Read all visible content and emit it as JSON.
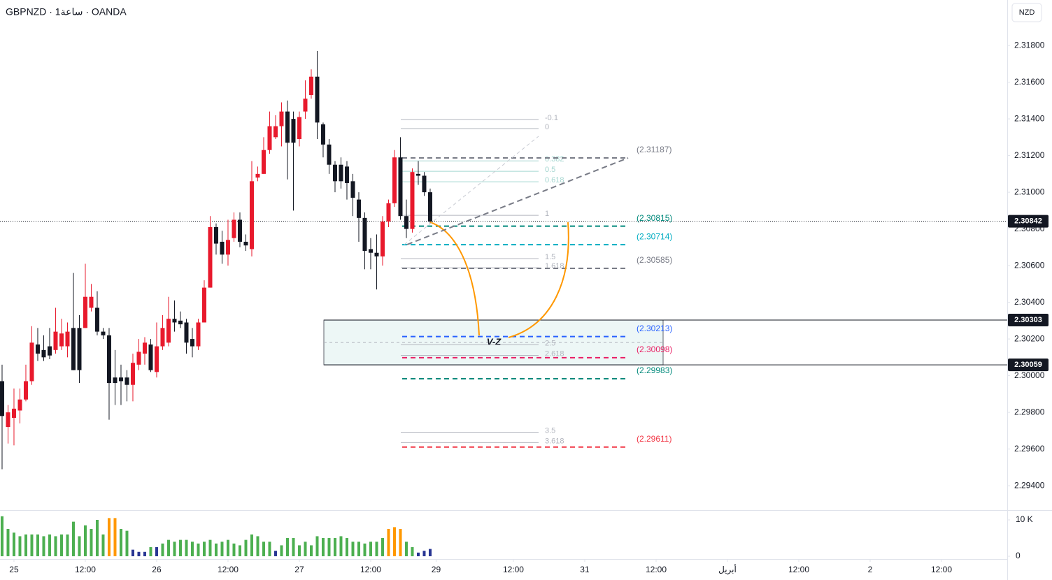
{
  "chart_data": {
    "type": "candlestick",
    "title": "GBPNZD · 1ساعة · OANDA",
    "currency": "NZD",
    "x": [
      -2,
      -1,
      0,
      1,
      2,
      3,
      4,
      5,
      6,
      7,
      8,
      9,
      10,
      11,
      12,
      13,
      14,
      15,
      16,
      17,
      18,
      19,
      20,
      21,
      22,
      23,
      24,
      25,
      26,
      27,
      28,
      29,
      30,
      31,
      32,
      33,
      34,
      35,
      36,
      37,
      38,
      39,
      40,
      41,
      42,
      43,
      44,
      45,
      46,
      47,
      48,
      49,
      50,
      51,
      52,
      53,
      54,
      55,
      56,
      57,
      58,
      59,
      60,
      61,
      62,
      63,
      64,
      65,
      66,
      67,
      68,
      69,
      70
    ],
    "open": [
      2.2997,
      2.2972,
      2.2977,
      2.2981,
      2.2987,
      2.2997,
      2.3017,
      2.3014,
      2.3016,
      2.3014,
      2.3016,
      2.3016,
      2.3026,
      2.3026,
      2.3026,
      2.3037,
      2.3037,
      2.3024,
      2.3022,
      2.2999,
      2.2999,
      2.2999,
      2.2995,
      2.3006,
      2.3012,
      2.3017,
      2.3002,
      2.3016,
      2.3018,
      2.3031,
      2.303,
      2.3029,
      2.302,
      2.3016,
      2.3029,
      2.3048,
      2.3081,
      2.3073,
      2.3066,
      2.3075,
      2.3085,
      2.3073,
      2.3069,
      2.3108,
      2.311,
      2.3123,
      2.313,
      2.3136,
      2.3144,
      2.314,
      2.3129,
      2.3144,
      2.3153,
      2.3163,
      2.3137,
      2.3126,
      2.3115,
      2.3115,
      2.3114,
      2.3106,
      2.3096,
      2.3086,
      2.3069,
      2.3067,
      2.3065,
      2.3084,
      2.3094,
      2.3119,
      2.3087,
      2.308,
      2.311,
      2.3109,
      2.31
    ],
    "high": [
      2.3006,
      2.2984,
      2.2993,
      2.2993,
      2.3006,
      2.3027,
      2.3026,
      2.3022,
      2.3026,
      2.3037,
      2.3031,
      2.3029,
      2.3056,
      2.3033,
      2.3061,
      2.305,
      2.3046,
      2.3026,
      2.3026,
      2.3014,
      2.3006,
      2.3003,
      2.3012,
      2.302,
      2.3021,
      2.302,
      2.3029,
      2.3033,
      2.3043,
      2.3041,
      2.3035,
      2.3031,
      2.3026,
      2.3031,
      2.3052,
      2.3087,
      2.3083,
      2.3079,
      2.3085,
      2.3089,
      2.3089,
      2.3077,
      2.3117,
      2.3114,
      2.313,
      2.3144,
      2.3142,
      2.3149,
      2.315,
      2.3144,
      2.3144,
      2.3161,
      2.3167,
      2.3177,
      2.3138,
      2.3129,
      2.3117,
      2.3119,
      2.3117,
      2.311,
      2.31,
      2.3089,
      2.3075,
      2.3077,
      2.3087,
      2.3096,
      2.3123,
      2.313,
      2.3096,
      2.3113,
      2.3117,
      2.3111,
      2.3102
    ],
    "low": [
      2.2949,
      2.2963,
      2.2962,
      2.2974,
      2.2986,
      2.2995,
      2.3008,
      2.3008,
      2.3009,
      2.3012,
      2.3014,
      2.301,
      2.3003,
      2.2996,
      2.3026,
      2.3035,
      2.3022,
      2.302,
      2.2976,
      2.2984,
      2.2984,
      2.2986,
      2.2986,
      2.3003,
      2.3006,
      2.3002,
      2.2999,
      2.3014,
      2.3016,
      2.3024,
      2.3026,
      2.3012,
      2.301,
      2.3014,
      2.3029,
      2.3048,
      2.3066,
      2.3061,
      2.306,
      2.3073,
      2.307,
      2.3068,
      2.3065,
      2.3106,
      2.311,
      2.3121,
      2.3129,
      2.3125,
      2.3107,
      2.309,
      2.3125,
      2.314,
      2.3151,
      2.3129,
      2.3119,
      2.311,
      2.31,
      2.3102,
      2.3096,
      2.3087,
      2.3073,
      2.3058,
      2.3058,
      2.3047,
      2.306,
      2.3081,
      2.3092,
      2.3085,
      2.3075,
      2.3078,
      2.3104,
      2.3098,
      2.3083
    ],
    "close": [
      2.2978,
      2.298,
      2.2982,
      2.2987,
      2.2997,
      2.3018,
      2.3012,
      2.301,
      2.3011,
      2.3024,
      2.3023,
      2.3024,
      2.3003,
      2.3003,
      2.3043,
      2.3043,
      2.3024,
      2.3022,
      2.2996,
      2.2996,
      2.2997,
      2.2995,
      2.3007,
      2.3013,
      2.3018,
      2.3003,
      2.3016,
      2.3026,
      2.3031,
      2.3029,
      2.3028,
      2.3018,
      2.3016,
      2.3029,
      2.3048,
      2.3081,
      2.3072,
      2.3066,
      2.3074,
      2.3085,
      2.3073,
      2.3071,
      2.3106,
      2.311,
      2.3123,
      2.3136,
      2.3136,
      2.3144,
      2.3127,
      2.3127,
      2.3141,
      2.3151,
      2.3163,
      2.3138,
      2.3126,
      2.3115,
      2.3106,
      2.3106,
      2.3105,
      2.3097,
      2.3086,
      2.3068,
      2.3067,
      2.3065,
      2.3084,
      2.3094,
      2.3119,
      2.3087,
      2.308,
      2.3111,
      2.3109,
      2.31,
      2.3084
    ],
    "up_color": "#e8192c",
    "down_color": "#131722",
    "xlim": [
      -2.35,
      167.06
    ],
    "ylim": [
      2.29267,
      2.32048
    ],
    "xticks": [
      {
        "value": 0,
        "label": "25"
      },
      {
        "value": 12,
        "label": "12:00"
      },
      {
        "value": 24,
        "label": "26"
      },
      {
        "value": 36,
        "label": "12:00"
      },
      {
        "value": 48,
        "label": "27"
      },
      {
        "value": 60,
        "label": "12:00"
      },
      {
        "value": 71,
        "label": "29"
      },
      {
        "value": 84,
        "label": "12:00"
      },
      {
        "value": 96,
        "label": "31"
      },
      {
        "value": 108,
        "label": "12:00"
      },
      {
        "value": 120,
        "label": "أبريل"
      },
      {
        "value": 132,
        "label": "12:00"
      },
      {
        "value": 144,
        "label": "2"
      },
      {
        "value": 156,
        "label": "12:00"
      }
    ],
    "yticks": [
      {
        "value": 2.318,
        "label": "2.31800"
      },
      {
        "value": 2.316,
        "label": "2.31600"
      },
      {
        "value": 2.314,
        "label": "2.31400"
      },
      {
        "value": 2.312,
        "label": "2.31200"
      },
      {
        "value": 2.31,
        "label": "2.31000"
      },
      {
        "value": 2.308,
        "label": "2.30800"
      },
      {
        "value": 2.306,
        "label": "2.30600"
      },
      {
        "value": 2.304,
        "label": "2.30400"
      },
      {
        "value": 2.302,
        "label": "2.30200"
      },
      {
        "value": 2.3,
        "label": "2.30000"
      },
      {
        "value": 2.298,
        "label": "2.29800"
      },
      {
        "value": 2.296,
        "label": "2.29600"
      },
      {
        "value": 2.294,
        "label": "2.29400"
      }
    ],
    "current_price": 2.30842,
    "zone_levels": [
      2.30303,
      2.30059
    ],
    "zone_label": "V-Z",
    "price_levels": [
      {
        "value": 2.31187,
        "label": "(2.31187)",
        "color": "#787b86"
      },
      {
        "value": 2.30815,
        "label": "(2.30815)",
        "color": "#00897b"
      },
      {
        "value": 2.30714,
        "label": "(2.30714)",
        "color": "#00acc1"
      },
      {
        "value": 2.30585,
        "label": "(2.30585)",
        "color": "#787b86"
      },
      {
        "value": 2.30213,
        "label": "(2.30213)",
        "color": "#2962ff"
      },
      {
        "value": 2.30098,
        "label": "(2.30098)",
        "color": "#e91e63"
      },
      {
        "value": 2.29983,
        "label": "(2.29983)",
        "color": "#00897b"
      },
      {
        "value": 2.29611,
        "label": "(2.29611)",
        "color": "#f23645"
      }
    ],
    "fib_levels": [
      {
        "ratio": -0.1,
        "price": 2.31396,
        "color": "#b2b5be"
      },
      {
        "ratio": 0,
        "price": 2.31347,
        "color": "#b2b5be"
      },
      {
        "ratio": 0.382,
        "price": 2.31171,
        "color": "#a5d6d0"
      },
      {
        "ratio": 0.5,
        "price": 2.31114,
        "color": "#a5d6d0"
      },
      {
        "ratio": 0.618,
        "price": 2.31057,
        "color": "#a5d6d0"
      },
      {
        "ratio": 1,
        "price": 2.30874,
        "color": "#b2b5be"
      },
      {
        "ratio": 1.5,
        "price": 2.30638,
        "color": "#b2b5be"
      },
      {
        "ratio": 1.618,
        "price": 2.30588,
        "color": "#b2b5be"
      },
      {
        "ratio": 2.5,
        "price": 2.30168,
        "color": "#b2b5be"
      },
      {
        "ratio": 2.618,
        "price": 2.30111,
        "color": "#b2b5be"
      },
      {
        "ratio": 3.5,
        "price": 2.29692,
        "color": "#b2b5be"
      },
      {
        "ratio": 3.618,
        "price": 2.29635,
        "color": "#b2b5be"
      }
    ],
    "volume": {
      "values": [
        11,
        7.5,
        6.5,
        5.5,
        6,
        6,
        6,
        5.5,
        6,
        5.5,
        6,
        6,
        9.5,
        5.5,
        8.5,
        7.5,
        10,
        6,
        10.5,
        10.5,
        7.5,
        7,
        1.8,
        1.2,
        1.2,
        2.5,
        2.5,
        3.5,
        4.5,
        4,
        4.5,
        4.5,
        4,
        3.5,
        4,
        4.5,
        3.5,
        4,
        4.5,
        3.5,
        3,
        4.5,
        6,
        5.5,
        4,
        4,
        1.5,
        3,
        5,
        5,
        3,
        4,
        3,
        5.5,
        5,
        5,
        5,
        5.5,
        5,
        4,
        4,
        3.5,
        4,
        4,
        5,
        7.5,
        8,
        7.5,
        4,
        2.5,
        1,
        1.5,
        2
      ],
      "colors": [
        "#4caf50",
        "#4caf50",
        "#4caf50",
        "#4caf50",
        "#4caf50",
        "#4caf50",
        "#4caf50",
        "#4caf50",
        "#4caf50",
        "#4caf50",
        "#4caf50",
        "#4caf50",
        "#4caf50",
        "#4caf50",
        "#4caf50",
        "#4caf50",
        "#4caf50",
        "#4caf50",
        "#ff9800",
        "#ff9800",
        "#4caf50",
        "#4caf50",
        "#283593",
        "#283593",
        "#283593",
        "#4caf50",
        "#283593",
        "#4caf50",
        "#4caf50",
        "#4caf50",
        "#4caf50",
        "#4caf50",
        "#4caf50",
        "#4caf50",
        "#4caf50",
        "#4caf50",
        "#4caf50",
        "#4caf50",
        "#4caf50",
        "#4caf50",
        "#4caf50",
        "#4caf50",
        "#4caf50",
        "#4caf50",
        "#4caf50",
        "#4caf50",
        "#283593",
        "#4caf50",
        "#4caf50",
        "#4caf50",
        "#4caf50",
        "#4caf50",
        "#4caf50",
        "#4caf50",
        "#4caf50",
        "#4caf50",
        "#4caf50",
        "#4caf50",
        "#4caf50",
        "#4caf50",
        "#4caf50",
        "#4caf50",
        "#4caf50",
        "#4caf50",
        "#4caf50",
        "#ff9800",
        "#ff9800",
        "#ff9800",
        "#4caf50",
        "#4caf50",
        "#283593",
        "#283593",
        "#283593"
      ],
      "ylim": [
        -0.77,
        12.69
      ],
      "yticks": [
        {
          "value": 10,
          "label": "10 K"
        },
        0
      ]
    }
  }
}
